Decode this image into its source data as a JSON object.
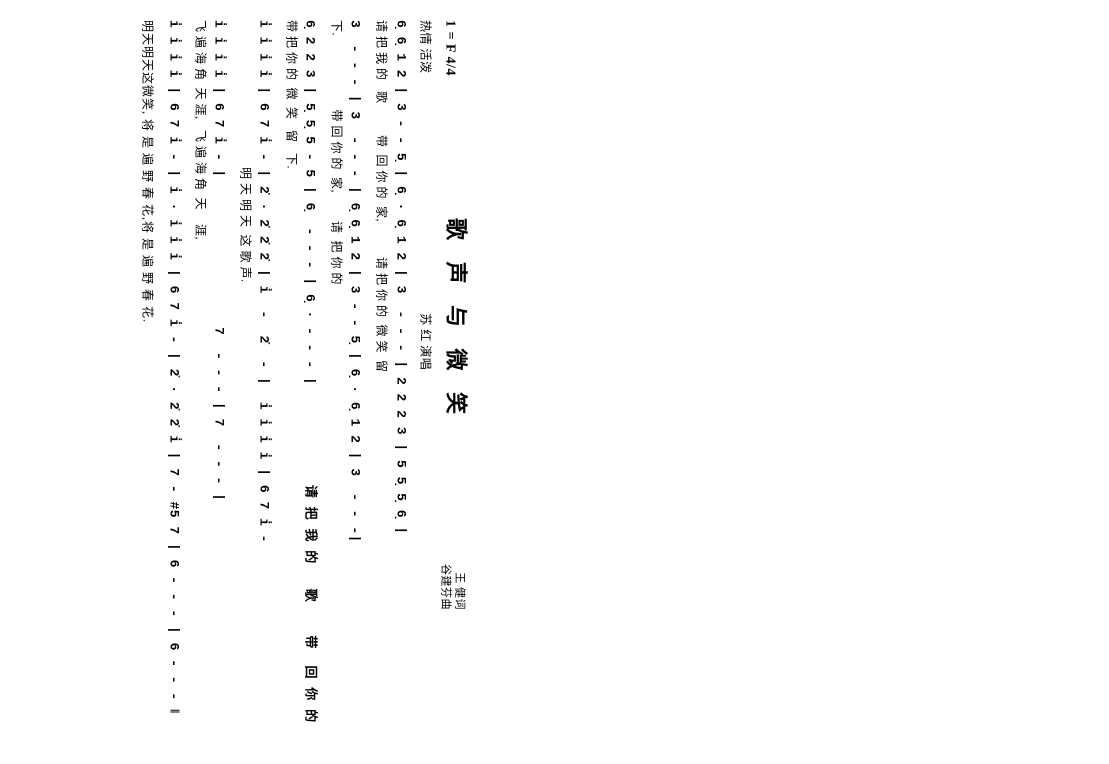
{
  "header": {
    "key": "1 = F  4/4",
    "title": "歌 声 与 微 笑",
    "credit1": "王 健词",
    "credit2": "谷建芬曲",
    "tempo": "热情  活泼",
    "singer": "苏 红 演唱"
  },
  "lines": [
    {
      "notation": "6̣ 6̣ 1 2 | 3 - - 5̣ | 6̣ · 6̣ 1 2 | 3  - - - | 2 2 2 3 | 5 5̣ 5̣ 6̣ |",
      "lyric": "请 把 我 的   歌         带  回 你 的  家,          请 把 你 的  微 笑  留"
    },
    {
      "notation": "3  - - - | 3  - - - | 6̣ 6̣ 1 2 | 3 - - 5̣ | 6̣ · 6̣ 1 2 | 3  - - -|",
      "lyric": "下.                     带 回 你 的  家,        请  把 你 的"
    },
    {
      "notation": "6̣ 2 2 3 | 5̣ 5̣ 5 - 5 | 6̣  - - - | 6̣ · - - - |            请 把 我 的   歌    带  回 你 的",
      "lyric": "带 把 你 的  微  笑   留   下."
    },
    {
      "notation": "i̇ i̇ i̇ i̇ | 6 7 i̇ - | 2̇ · 2̇ 2̇ 2̇ | i̇  -  2̇  - |  i̇ i̇ i̇ i̇ | 6 7 i̇ -",
      "lyric": "                                          明 天 明 天  这 歌 声."
    },
    {
      "notation": "i̇ i̇ i̇ i̇ | 6 7 i̇ - |                  7  - - - | 7  - - - |",
      "lyric": "飞 遍 海 角  天 涯,   飞 遍 海 角  天    涯,"
    },
    {
      "notation": "i̇ i̇ i̇ i̇ | 6 7 i̇ - | i̇ · i̇ i̇ i̇ | 6 7 i̇ - | 2̇ · 2̇ 2̇ i̇ | 7 - #5 7 | 6 - - - | 6 - - - ‖",
      "lyric": ""
    }
  ],
  "final": "明天明天这微笑, 将 是 遍 野 春  花,将 是 遍 野 春    花."
}
